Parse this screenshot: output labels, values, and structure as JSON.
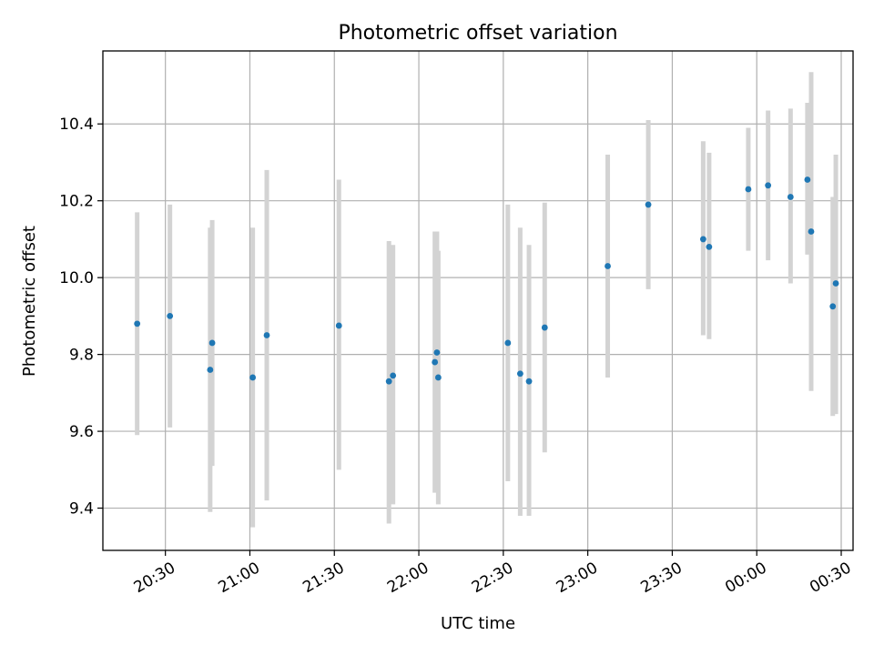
{
  "chart_data": {
    "type": "scatter",
    "title": "Photometric offset variation",
    "xlabel": "UTC time",
    "ylabel": "Photometric offset",
    "xlim": [
      20.13,
      24.57
    ],
    "ylim": [
      9.29,
      10.59
    ],
    "grid": true,
    "x_ticks": [
      {
        "value": 20.5,
        "label": "20:30"
      },
      {
        "value": 21.0,
        "label": "21:00"
      },
      {
        "value": 21.5,
        "label": "21:30"
      },
      {
        "value": 22.0,
        "label": "22:00"
      },
      {
        "value": 22.5,
        "label": "22:30"
      },
      {
        "value": 23.0,
        "label": "23:00"
      },
      {
        "value": 23.5,
        "label": "23:30"
      },
      {
        "value": 24.0,
        "label": "00:00"
      },
      {
        "value": 24.5,
        "label": "00:30"
      }
    ],
    "y_ticks": [
      {
        "value": 9.4,
        "label": "9.4"
      },
      {
        "value": 9.6,
        "label": "9.6"
      },
      {
        "value": 9.8,
        "label": "9.8"
      },
      {
        "value": 10.0,
        "label": "10.0"
      },
      {
        "value": 10.2,
        "label": "10.2"
      },
      {
        "value": 10.4,
        "label": "10.4"
      }
    ],
    "colors": {
      "point": "#1f77b4",
      "errorbar": "#d3d3d3"
    },
    "points": [
      {
        "x": 20.333,
        "y": 9.88,
        "ylo": 9.59,
        "yhi": 10.17
      },
      {
        "x": 20.527,
        "y": 9.9,
        "ylo": 9.61,
        "yhi": 10.19
      },
      {
        "x": 20.765,
        "y": 9.76,
        "ylo": 9.39,
        "yhi": 10.13
      },
      {
        "x": 20.777,
        "y": 9.83,
        "ylo": 9.51,
        "yhi": 10.15
      },
      {
        "x": 21.017,
        "y": 9.74,
        "ylo": 9.35,
        "yhi": 10.13
      },
      {
        "x": 21.1,
        "y": 9.85,
        "ylo": 9.42,
        "yhi": 10.28
      },
      {
        "x": 21.527,
        "y": 9.875,
        "ylo": 9.5,
        "yhi": 10.255
      },
      {
        "x": 21.823,
        "y": 9.73,
        "ylo": 9.36,
        "yhi": 10.095
      },
      {
        "x": 21.847,
        "y": 9.745,
        "ylo": 9.41,
        "yhi": 10.085
      },
      {
        "x": 22.095,
        "y": 9.78,
        "ylo": 9.44,
        "yhi": 10.12
      },
      {
        "x": 22.107,
        "y": 9.805,
        "ylo": 9.47,
        "yhi": 10.12
      },
      {
        "x": 22.115,
        "y": 9.74,
        "ylo": 9.41,
        "yhi": 10.07
      },
      {
        "x": 22.527,
        "y": 9.83,
        "ylo": 9.47,
        "yhi": 10.19
      },
      {
        "x": 22.6,
        "y": 9.75,
        "ylo": 9.38,
        "yhi": 10.13
      },
      {
        "x": 22.652,
        "y": 9.73,
        "ylo": 9.38,
        "yhi": 10.085
      },
      {
        "x": 22.745,
        "y": 9.87,
        "ylo": 9.545,
        "yhi": 10.195
      },
      {
        "x": 23.118,
        "y": 10.03,
        "ylo": 9.74,
        "yhi": 10.32
      },
      {
        "x": 23.358,
        "y": 10.19,
        "ylo": 9.97,
        "yhi": 10.41
      },
      {
        "x": 23.683,
        "y": 10.1,
        "ylo": 9.85,
        "yhi": 10.355
      },
      {
        "x": 23.718,
        "y": 10.08,
        "ylo": 9.84,
        "yhi": 10.325
      },
      {
        "x": 23.95,
        "y": 10.23,
        "ylo": 10.07,
        "yhi": 10.39
      },
      {
        "x": 24.067,
        "y": 10.24,
        "ylo": 10.045,
        "yhi": 10.435
      },
      {
        "x": 24.2,
        "y": 10.21,
        "ylo": 9.985,
        "yhi": 10.44
      },
      {
        "x": 24.3,
        "y": 10.255,
        "ylo": 10.06,
        "yhi": 10.455
      },
      {
        "x": 24.322,
        "y": 10.12,
        "ylo": 9.705,
        "yhi": 10.535
      },
      {
        "x": 24.45,
        "y": 9.925,
        "ylo": 9.64,
        "yhi": 10.21
      },
      {
        "x": 24.468,
        "y": 9.985,
        "ylo": 9.645,
        "yhi": 10.32
      }
    ]
  }
}
